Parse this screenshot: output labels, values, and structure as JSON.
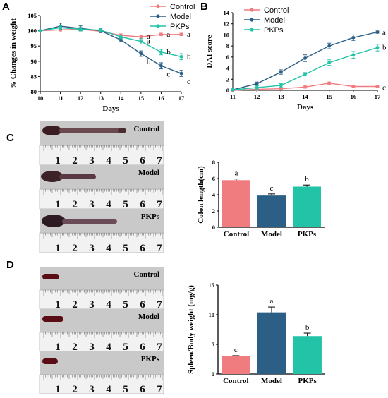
{
  "figure": {
    "panels": [
      "A",
      "B",
      "C",
      "D"
    ],
    "colors": {
      "Control": "#F07C80",
      "Model": "#2B5F86",
      "PKPs": "#22C3A6"
    }
  },
  "photos": {
    "C": {
      "rows": [
        "Control",
        "Model",
        "PKPs"
      ],
      "ruler_numbers": [
        "1",
        "2",
        "3",
        "4",
        "5",
        "6",
        "7"
      ]
    },
    "D": {
      "rows": [
        "Control",
        "Model",
        "PKPs"
      ],
      "ruler_numbers": [
        "1",
        "2",
        "3",
        "4",
        "5",
        "6",
        "7"
      ]
    }
  },
  "chart_data": [
    {
      "panel": "A",
      "type": "line",
      "xlabel": "Days",
      "ylabel": "% Changes in weight",
      "x": [
        10,
        11,
        12,
        13,
        14,
        15,
        16,
        17
      ],
      "xlim": [
        10,
        17
      ],
      "ylim": [
        80,
        105
      ],
      "yticks": [
        80,
        85,
        90,
        95,
        100,
        105
      ],
      "legend_position": "top-right",
      "series": [
        {
          "name": "Control",
          "values": [
            100,
            100.3,
            100.5,
            99.8,
            98.5,
            98.0,
            98.8,
            98.8
          ],
          "errors": [
            0,
            0.4,
            0.4,
            0.4,
            0.5,
            0.5,
            0.4,
            0.4
          ],
          "labels": [
            "",
            "",
            "",
            "",
            "",
            "a",
            "a",
            "a"
          ]
        },
        {
          "name": "Model",
          "values": [
            100,
            101.5,
            100.8,
            100.0,
            97.0,
            92.5,
            88.5,
            86.0
          ],
          "errors": [
            0,
            1.0,
            0.8,
            0.6,
            0.6,
            0.9,
            1.0,
            1.0
          ],
          "labels": [
            "",
            "",
            "",
            "",
            "",
            "b",
            "c",
            "c"
          ]
        },
        {
          "name": "PKPs",
          "values": [
            100,
            101.0,
            100.5,
            100.2,
            98.0,
            96.5,
            93.0,
            91.5
          ],
          "errors": [
            0,
            0.6,
            0.6,
            0.6,
            0.6,
            0.9,
            0.9,
            1.0
          ],
          "labels": [
            "",
            "",
            "",
            "",
            "",
            "a",
            "b",
            "b"
          ]
        }
      ]
    },
    {
      "panel": "B",
      "type": "line",
      "xlabel": "Days",
      "ylabel": "DAI score",
      "x": [
        11,
        12,
        13,
        14,
        15,
        16,
        17
      ],
      "xlim": [
        11,
        17
      ],
      "ylim": [
        0,
        14
      ],
      "yticks": [
        0,
        2,
        4,
        6,
        8,
        10,
        12,
        14
      ],
      "legend_position": "top-left",
      "series": [
        {
          "name": "Control",
          "values": [
            0,
            0.2,
            0.3,
            0.6,
            1.3,
            0.7,
            0.7
          ],
          "errors": [
            0,
            0.1,
            0.1,
            0.2,
            0.2,
            0.1,
            0.1
          ],
          "labels": [
            "",
            "",
            "",
            "",
            "",
            "",
            "c"
          ]
        },
        {
          "name": "Model",
          "values": [
            0.1,
            1.2,
            3.3,
            5.8,
            8.0,
            9.5,
            10.5
          ],
          "errors": [
            0,
            0.3,
            0.4,
            0.6,
            0.5,
            0.5,
            0.2
          ],
          "labels": [
            "",
            "",
            "",
            "",
            "",
            "",
            "a"
          ]
        },
        {
          "name": "PKPs",
          "values": [
            0.1,
            0.5,
            0.9,
            2.9,
            5.0,
            6.4,
            7.7
          ],
          "errors": [
            0,
            0.3,
            0.3,
            0.3,
            0.5,
            0.6,
            0.6
          ],
          "labels": [
            "",
            "",
            "",
            "",
            "",
            "",
            "b"
          ]
        }
      ]
    },
    {
      "panel": "C",
      "type": "bar",
      "ylabel": "Colon length(cm)",
      "categories": [
        "Control",
        "Model",
        "PKPs"
      ],
      "values": [
        5.8,
        3.9,
        5.0
      ],
      "errors": [
        0.15,
        0.2,
        0.2
      ],
      "labels": [
        "a",
        "c",
        "b"
      ],
      "ylim": [
        0,
        8
      ],
      "yticks": [
        0,
        2,
        4,
        6,
        8
      ]
    },
    {
      "panel": "D",
      "type": "bar",
      "ylabel": "Spleen/Body weight (mg/g)",
      "categories": [
        "Control",
        "Model",
        "PKPs"
      ],
      "values": [
        3.0,
        10.4,
        6.4
      ],
      "errors": [
        0.1,
        0.9,
        0.5
      ],
      "labels": [
        "c",
        "a",
        "b"
      ],
      "ylim": [
        0,
        15
      ],
      "yticks": [
        0,
        5,
        10,
        15
      ]
    }
  ]
}
